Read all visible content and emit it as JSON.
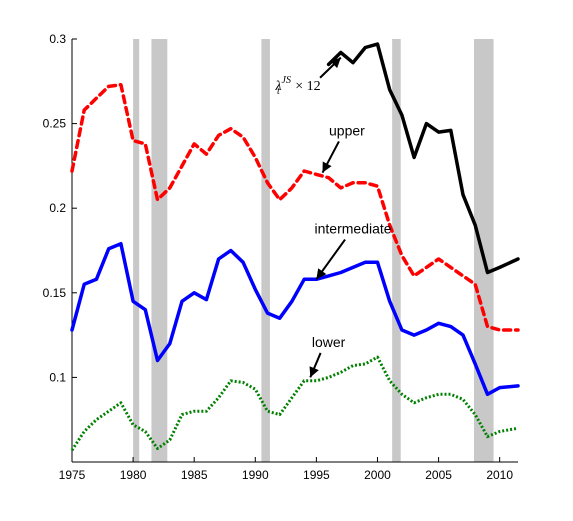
{
  "chart_data": {
    "type": "line",
    "title": "",
    "xlabel": "",
    "ylabel": "",
    "xlim": [
      1975,
      2011.5
    ],
    "ylim": [
      0.05,
      0.3
    ],
    "x_ticks": [
      "1975",
      "1980",
      "1985",
      "1990",
      "1995",
      "2000",
      "2005",
      "2010"
    ],
    "y_ticks": [
      "0.1",
      "0.15",
      "0.2",
      "0.25",
      "0.3"
    ],
    "grid": false,
    "recession_shading": [
      [
        1980.0,
        1980.5
      ],
      [
        1981.5,
        1982.8
      ],
      [
        1990.5,
        1991.2
      ],
      [
        2001.2,
        2001.9
      ],
      [
        2007.9,
        2009.5
      ]
    ],
    "series": [
      {
        "color": "#000000",
        "style": "solid",
        "x": [
          1996.0,
          1997.0,
          1998.0,
          1999.0,
          2000.0,
          2001.0,
          2002.0,
          2003.0,
          2004.0,
          2005.0,
          2006.0,
          2007.0,
          2008.0,
          2009.0,
          2010.0,
          2011.5
        ],
        "values": [
          0.285,
          0.292,
          0.286,
          0.295,
          0.297,
          0.27,
          0.255,
          0.23,
          0.25,
          0.245,
          0.246,
          0.208,
          0.19,
          0.162,
          0.165,
          0.17
        ]
      },
      {
        "color": "#ff0000",
        "style": "dashed",
        "x": [
          1975.0,
          1976.0,
          1977.0,
          1978.0,
          1979.0,
          1980.0,
          1981.0,
          1982.0,
          1983.0,
          1984.0,
          1985.0,
          1986.0,
          1987.0,
          1988.0,
          1989.0,
          1990.0,
          1991.0,
          1992.0,
          1993.0,
          1994.0,
          1995.0,
          1996.0,
          1997.0,
          1998.0,
          1999.0,
          2000.0,
          2001.0,
          2002.0,
          2003.0,
          2004.0,
          2005.0,
          2006.0,
          2007.0,
          2008.0,
          2009.0,
          2010.0,
          2011.5
        ],
        "values": [
          0.222,
          0.258,
          0.265,
          0.272,
          0.273,
          0.24,
          0.238,
          0.205,
          0.212,
          0.225,
          0.238,
          0.232,
          0.243,
          0.247,
          0.242,
          0.23,
          0.215,
          0.205,
          0.212,
          0.222,
          0.22,
          0.218,
          0.212,
          0.215,
          0.215,
          0.213,
          0.19,
          0.172,
          0.16,
          0.165,
          0.17,
          0.165,
          0.16,
          0.155,
          0.13,
          0.128,
          0.128
        ]
      },
      {
        "color": "#0000ff",
        "style": "solid",
        "x": [
          1975.0,
          1976.0,
          1977.0,
          1978.0,
          1979.0,
          1980.0,
          1981.0,
          1982.0,
          1983.0,
          1984.0,
          1985.0,
          1986.0,
          1987.0,
          1988.0,
          1989.0,
          1990.0,
          1991.0,
          1992.0,
          1993.0,
          1994.0,
          1995.0,
          1996.0,
          1997.0,
          1998.0,
          1999.0,
          2000.0,
          2001.0,
          2002.0,
          2003.0,
          2004.0,
          2005.0,
          2006.0,
          2007.0,
          2008.0,
          2009.0,
          2010.0,
          2011.5
        ],
        "values": [
          0.128,
          0.155,
          0.158,
          0.176,
          0.179,
          0.145,
          0.14,
          0.11,
          0.12,
          0.145,
          0.15,
          0.146,
          0.17,
          0.175,
          0.168,
          0.152,
          0.138,
          0.135,
          0.145,
          0.158,
          0.158,
          0.16,
          0.162,
          0.165,
          0.168,
          0.168,
          0.145,
          0.128,
          0.125,
          0.128,
          0.132,
          0.13,
          0.125,
          0.108,
          0.09,
          0.094,
          0.095
        ]
      },
      {
        "color": "#008000",
        "style": "dotted",
        "x": [
          1975.0,
          1976.0,
          1977.0,
          1978.0,
          1979.0,
          1980.0,
          1981.0,
          1982.0,
          1983.0,
          1984.0,
          1985.0,
          1986.0,
          1987.0,
          1988.0,
          1989.0,
          1990.0,
          1991.0,
          1992.0,
          1993.0,
          1994.0,
          1995.0,
          1996.0,
          1997.0,
          1998.0,
          1999.0,
          2000.0,
          2001.0,
          2002.0,
          2003.0,
          2004.0,
          2005.0,
          2006.0,
          2007.0,
          2008.0,
          2009.0,
          2010.0,
          2011.5
        ],
        "values": [
          0.057,
          0.068,
          0.075,
          0.08,
          0.085,
          0.072,
          0.068,
          0.058,
          0.063,
          0.078,
          0.08,
          0.08,
          0.088,
          0.098,
          0.097,
          0.093,
          0.08,
          0.078,
          0.088,
          0.098,
          0.098,
          0.1,
          0.103,
          0.107,
          0.108,
          0.112,
          0.098,
          0.09,
          0.085,
          0.088,
          0.09,
          0.09,
          0.087,
          0.078,
          0.065,
          0.068,
          0.07
        ]
      }
    ],
    "annotations": [
      {
        "text": "upper",
        "x": 1997.5,
        "y": 0.243,
        "arrow_to": [
          1995.5,
          0.221
        ]
      },
      {
        "text": "intermediate",
        "x": 1998.0,
        "y": 0.185,
        "arrow_to": [
          1995.0,
          0.158
        ]
      },
      {
        "text": "lower",
        "x": 1996.0,
        "y": 0.118,
        "arrow_to": [
          1994.5,
          0.1
        ]
      },
      {
        "prefix": "λ",
        "sub": "t",
        "sup": "JS",
        "suffix": "× 12",
        "x": 1993.5,
        "y": 0.27,
        "arrow_to": [
          1997.0,
          0.289
        ]
      }
    ]
  }
}
